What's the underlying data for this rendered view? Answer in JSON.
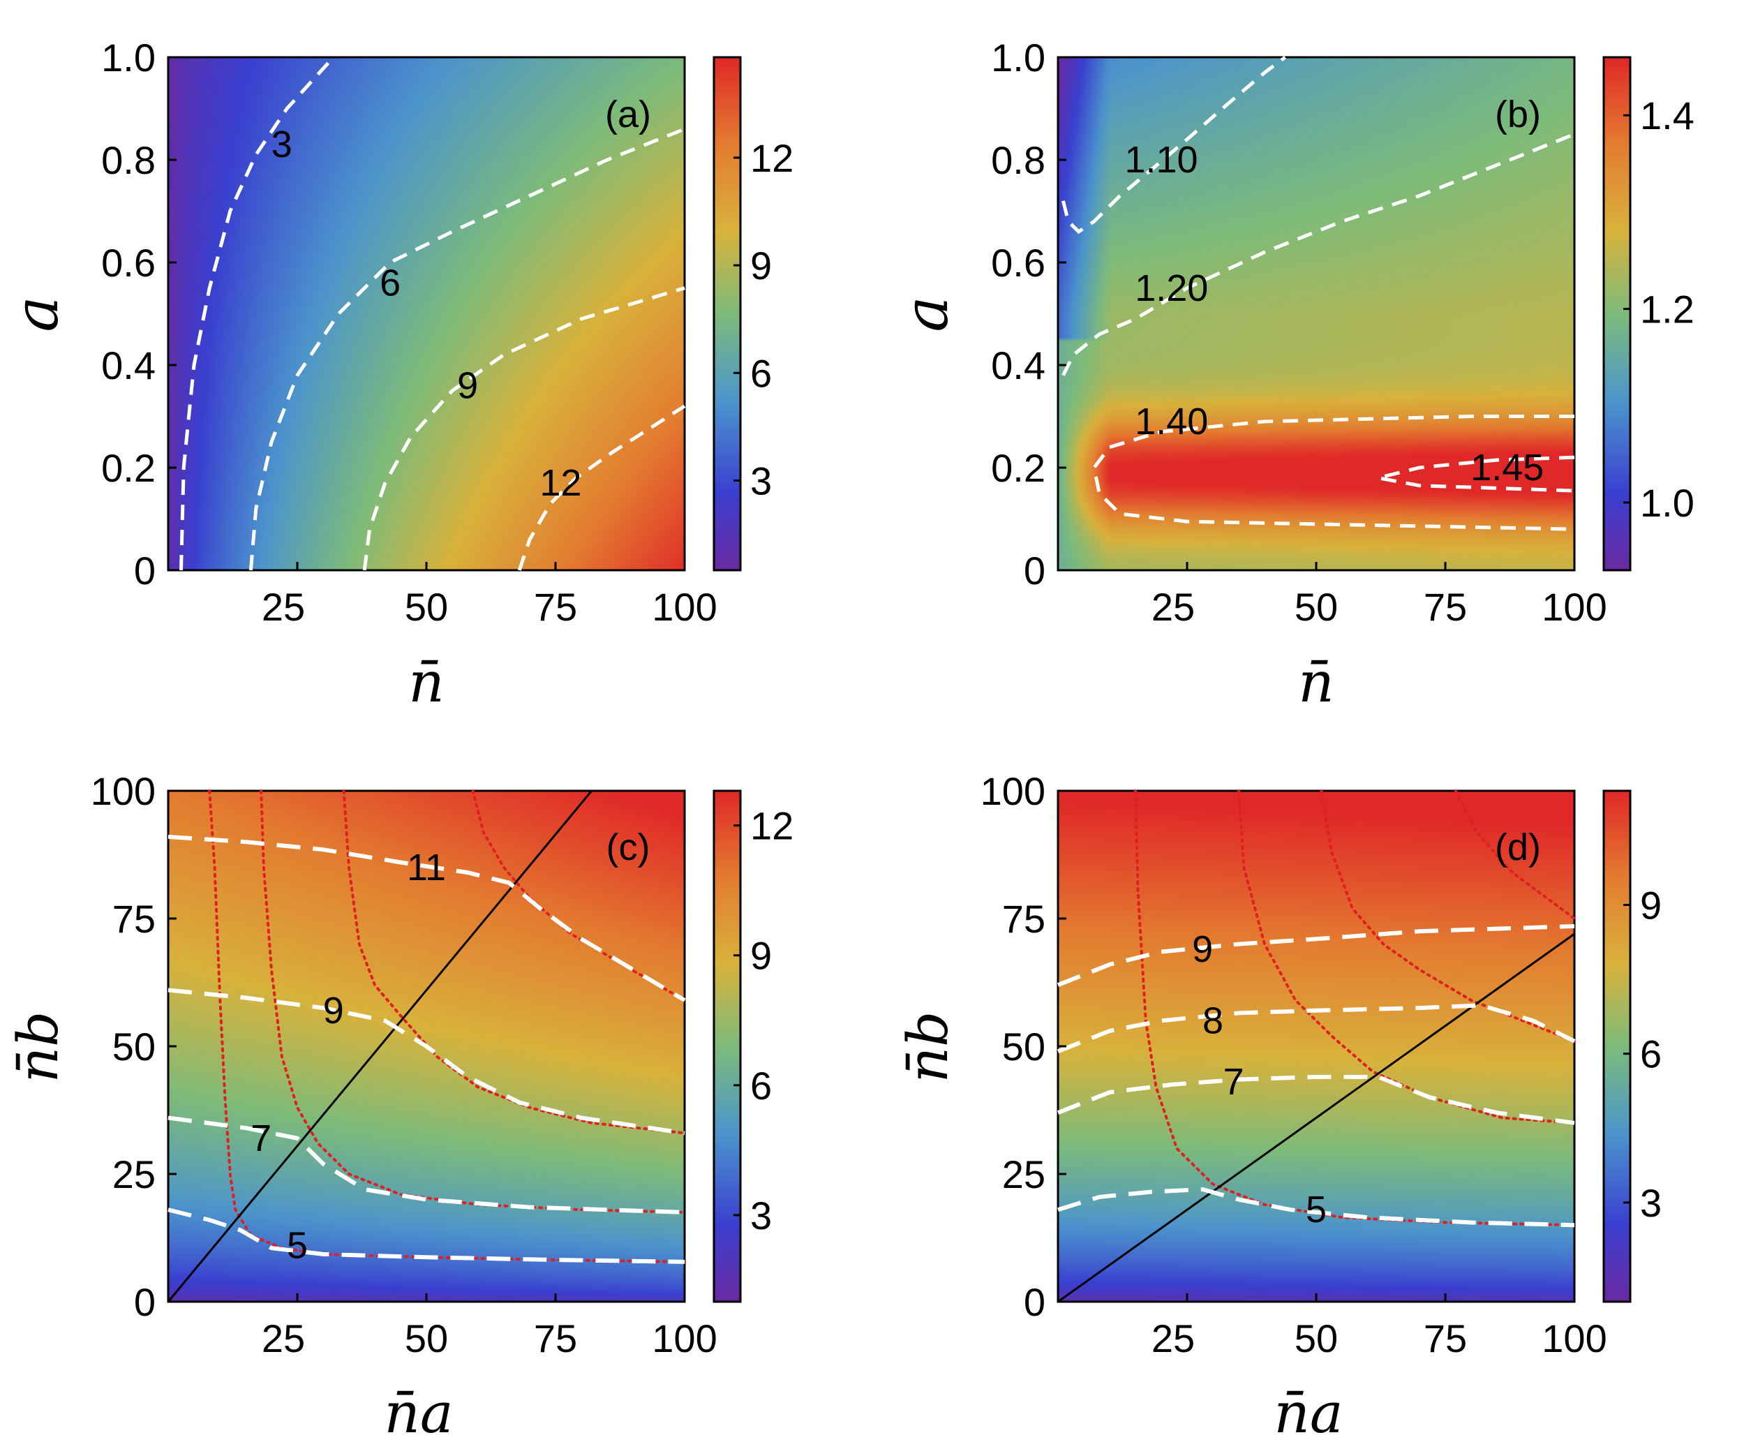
{
  "chart_data": [
    {
      "type": "heatmap",
      "panel_label": "(a)",
      "xlabel": "n̄",
      "ylabel": "a",
      "xlim": [
        0,
        100
      ],
      "ylim": [
        0,
        1
      ],
      "x_ticks": [
        "25",
        "50",
        "75",
        "100"
      ],
      "x_tick_values": [
        25,
        50,
        75,
        100
      ],
      "y_ticks": [
        "0",
        "0.2",
        "0.4",
        "0.6",
        "0.8",
        "1.0"
      ],
      "y_tick_values": [
        0,
        0.2,
        0.4,
        0.6,
        0.8,
        1.0
      ],
      "colorbar": {
        "min": 0.5,
        "max": 14.8,
        "ticks": [
          "3",
          "6",
          "9",
          "12"
        ],
        "tick_values": [
          3,
          6,
          9,
          12
        ]
      },
      "contours": [
        {
          "label": "3",
          "points": [
            [
              2.5,
              0
            ],
            [
              3,
              0.2
            ],
            [
              5,
              0.4
            ],
            [
              8,
              0.55
            ],
            [
              12,
              0.7
            ],
            [
              17,
              0.81
            ],
            [
              23,
              0.9
            ],
            [
              32,
              1.0
            ]
          ],
          "label_at": [
            22,
            0.83
          ]
        },
        {
          "label": "6",
          "points": [
            [
              16,
              0
            ],
            [
              17,
              0.12
            ],
            [
              20,
              0.25
            ],
            [
              25,
              0.38
            ],
            [
              33,
              0.5
            ],
            [
              43,
              0.6
            ],
            [
              55,
              0.66
            ],
            [
              70,
              0.73
            ],
            [
              85,
              0.8
            ],
            [
              100,
              0.86
            ]
          ],
          "label_at": [
            43,
            0.56
          ]
        },
        {
          "label": "9",
          "points": [
            [
              38,
              0
            ],
            [
              39,
              0.08
            ],
            [
              42,
              0.17
            ],
            [
              47,
              0.26
            ],
            [
              55,
              0.35
            ],
            [
              65,
              0.42
            ],
            [
              80,
              0.49
            ],
            [
              100,
              0.55
            ]
          ],
          "label_at": [
            58,
            0.36
          ]
        },
        {
          "label": "12",
          "points": [
            [
              68,
              0
            ],
            [
              70,
              0.06
            ],
            [
              74,
              0.13
            ],
            [
              79,
              0.18
            ],
            [
              86,
              0.23
            ],
            [
              100,
              0.32
            ]
          ],
          "label_at": [
            76,
            0.17
          ]
        }
      ]
    },
    {
      "type": "heatmap",
      "panel_label": "(b)",
      "xlabel": "n̄",
      "ylabel": "a",
      "xlim": [
        0,
        100
      ],
      "ylim": [
        0,
        1
      ],
      "x_ticks": [
        "25",
        "50",
        "75",
        "100"
      ],
      "x_tick_values": [
        25,
        50,
        75,
        100
      ],
      "y_ticks": [
        "0",
        "0.2",
        "0.4",
        "0.6",
        "0.8",
        "1.0"
      ],
      "y_tick_values": [
        0,
        0.2,
        0.4,
        0.6,
        0.8,
        1.0
      ],
      "colorbar": {
        "min": 0.93,
        "max": 1.46,
        "ticks": [
          "1.0",
          "1.2",
          "1.4"
        ],
        "tick_values": [
          1.0,
          1.2,
          1.4
        ]
      },
      "contours": [
        {
          "label": "1.10",
          "points": [
            [
              1,
              0.72
            ],
            [
              2,
              0.68
            ],
            [
              4,
              0.66
            ],
            [
              7,
              0.68
            ],
            [
              12,
              0.73
            ],
            [
              18,
              0.78
            ],
            [
              25,
              0.84
            ],
            [
              33,
              0.91
            ],
            [
              40,
              0.97
            ],
            [
              44,
              1.0
            ]
          ],
          "label_at": [
            20,
            0.8
          ]
        },
        {
          "label": "1.20",
          "points": [
            [
              1,
              0.38
            ],
            [
              3,
              0.42
            ],
            [
              8,
              0.46
            ],
            [
              15,
              0.49
            ],
            [
              25,
              0.55
            ],
            [
              40,
              0.62
            ],
            [
              55,
              0.68
            ],
            [
              70,
              0.73
            ],
            [
              85,
              0.79
            ],
            [
              100,
              0.85
            ]
          ],
          "label_at": [
            22,
            0.55
          ]
        },
        {
          "label": "1.40",
          "points": [
            [
              100,
              0.3
            ],
            [
              80,
              0.3
            ],
            [
              60,
              0.295
            ],
            [
              40,
              0.29
            ],
            [
              20,
              0.27
            ],
            [
              10,
              0.24
            ],
            [
              7,
              0.2
            ],
            [
              8,
              0.15
            ],
            [
              12,
              0.11
            ],
            [
              25,
              0.095
            ],
            [
              50,
              0.09
            ],
            [
              75,
              0.085
            ],
            [
              100,
              0.08
            ]
          ],
          "label_at": [
            22,
            0.29
          ]
        },
        {
          "label": "1.45",
          "points": [
            [
              100,
              0.22
            ],
            [
              85,
              0.215
            ],
            [
              70,
              0.2
            ],
            [
              62,
              0.18
            ],
            [
              70,
              0.165
            ],
            [
              85,
              0.16
            ],
            [
              100,
              0.155
            ]
          ],
          "label_at": [
            87,
            0.2
          ]
        }
      ]
    },
    {
      "type": "heatmap",
      "panel_label": "(c)",
      "xlabel": "n̄a",
      "ylabel": "n̄b",
      "xlim": [
        0,
        100
      ],
      "ylim": [
        0,
        100
      ],
      "x_ticks": [
        "25",
        "50",
        "75",
        "100"
      ],
      "x_tick_values": [
        25,
        50,
        75,
        100
      ],
      "y_ticks": [
        "0",
        "25",
        "50",
        "75",
        "100"
      ],
      "y_tick_values": [
        0,
        25,
        50,
        75,
        100
      ],
      "colorbar": {
        "min": 1,
        "max": 12.8,
        "ticks": [
          "3",
          "6",
          "9",
          "12"
        ],
        "tick_values": [
          3,
          6,
          9,
          12
        ]
      },
      "contours": [
        {
          "label": "11",
          "points": [
            [
              0,
              91
            ],
            [
              15,
              90
            ],
            [
              30,
              88.5
            ],
            [
              45,
              86
            ],
            [
              58,
              84
            ],
            [
              66,
              82
            ],
            [
              72,
              77
            ],
            [
              80,
              71
            ],
            [
              90,
              65
            ],
            [
              100,
              59
            ]
          ],
          "label_at": [
            50,
            85
          ]
        },
        {
          "label": "9",
          "points": [
            [
              0,
              61
            ],
            [
              15,
              59.5
            ],
            [
              30,
              57.5
            ],
            [
              42,
              55
            ],
            [
              50,
              50
            ],
            [
              58,
              44
            ],
            [
              68,
              39
            ],
            [
              80,
              36
            ],
            [
              100,
              33
            ]
          ],
          "label_at": [
            32,
            57
          ]
        },
        {
          "label": "7",
          "points": [
            [
              0,
              36
            ],
            [
              15,
              34
            ],
            [
              25,
              32
            ],
            [
              30,
              27
            ],
            [
              38,
              22
            ],
            [
              50,
              20
            ],
            [
              70,
              18.5
            ],
            [
              100,
              17.5
            ]
          ],
          "label_at": [
            18,
            32
          ]
        },
        {
          "label": "5",
          "points": [
            [
              0,
              18
            ],
            [
              8,
              16
            ],
            [
              14,
              14
            ],
            [
              20,
              10.5
            ],
            [
              30,
              9.3
            ],
            [
              50,
              8.7
            ],
            [
              75,
              8.2
            ],
            [
              100,
              7.8
            ]
          ],
          "label_at": [
            25,
            11
          ]
        }
      ],
      "red_curves": [
        [
          [
            8,
            100
          ],
          [
            9,
            85
          ],
          [
            10,
            60
          ],
          [
            11,
            40
          ],
          [
            12,
            25
          ],
          [
            13,
            18
          ],
          [
            16,
            13
          ],
          [
            22,
            10.5
          ],
          [
            30,
            9.3
          ],
          [
            50,
            8.7
          ],
          [
            75,
            8.2
          ],
          [
            100,
            7.8
          ]
        ],
        [
          [
            18,
            100
          ],
          [
            18.5,
            85
          ],
          [
            20,
            65
          ],
          [
            22,
            48
          ],
          [
            25,
            38
          ],
          [
            29,
            31
          ],
          [
            35,
            25
          ],
          [
            45,
            21
          ],
          [
            60,
            19
          ],
          [
            80,
            18
          ],
          [
            100,
            17.5
          ]
        ],
        [
          [
            34,
            100
          ],
          [
            35,
            85
          ],
          [
            37,
            70
          ],
          [
            40,
            62
          ],
          [
            45,
            56
          ],
          [
            52,
            48
          ],
          [
            60,
            42
          ],
          [
            70,
            38
          ],
          [
            82,
            35
          ],
          [
            100,
            33
          ]
        ],
        [
          [
            59,
            100
          ],
          [
            61,
            92
          ],
          [
            65,
            85
          ],
          [
            70,
            79
          ],
          [
            78,
            72
          ],
          [
            88,
            66
          ],
          [
            100,
            59
          ]
        ]
      ],
      "diagonal": [
        [
          0,
          0
        ],
        [
          82,
          100
        ]
      ]
    },
    {
      "type": "heatmap",
      "panel_label": "(d)",
      "xlabel": "n̄a",
      "ylabel": "n̄b",
      "xlim": [
        0,
        100
      ],
      "ylim": [
        0,
        100
      ],
      "x_ticks": [
        "25",
        "50",
        "75",
        "100"
      ],
      "x_tick_values": [
        25,
        50,
        75,
        100
      ],
      "y_ticks": [
        "0",
        "25",
        "50",
        "75",
        "100"
      ],
      "y_tick_values": [
        0,
        25,
        50,
        75,
        100
      ],
      "colorbar": {
        "min": 1,
        "max": 11.3,
        "ticks": [
          "3",
          "6",
          "9"
        ],
        "tick_values": [
          3,
          6,
          9
        ]
      },
      "contours": [
        {
          "label": "9",
          "points": [
            [
              0,
              62
            ],
            [
              10,
              66
            ],
            [
              20,
              68.5
            ],
            [
              35,
              70
            ],
            [
              50,
              71
            ],
            [
              70,
              72.5
            ],
            [
              85,
              73
            ],
            [
              100,
              73.5
            ]
          ],
          "label_at": [
            28,
            69
          ]
        },
        {
          "label": "8",
          "points": [
            [
              0,
              49
            ],
            [
              10,
              53
            ],
            [
              20,
              55
            ],
            [
              35,
              56.5
            ],
            [
              50,
              57
            ],
            [
              70,
              57.5
            ],
            [
              82,
              58
            ],
            [
              92,
              55
            ],
            [
              100,
              51
            ]
          ],
          "label_at": [
            30,
            55
          ]
        },
        {
          "label": "7",
          "points": [
            [
              0,
              37
            ],
            [
              10,
              41
            ],
            [
              22,
              42.5
            ],
            [
              35,
              43.5
            ],
            [
              50,
              44
            ],
            [
              62,
              44
            ],
            [
              72,
              40
            ],
            [
              85,
              37
            ],
            [
              100,
              35
            ]
          ],
          "label_at": [
            34,
            43
          ]
        },
        {
          "label": "5",
          "points": [
            [
              0,
              18
            ],
            [
              8,
              20.5
            ],
            [
              18,
              21.5
            ],
            [
              28,
              22
            ],
            [
              35,
              20
            ],
            [
              45,
              18
            ],
            [
              60,
              16.5
            ],
            [
              80,
              15.5
            ],
            [
              100,
              15
            ]
          ],
          "label_at": [
            50,
            18
          ]
        }
      ],
      "red_curves": [
        [
          [
            15,
            100
          ],
          [
            15.5,
            80
          ],
          [
            17,
            55
          ],
          [
            19,
            42
          ],
          [
            23,
            30
          ],
          [
            30,
            23
          ],
          [
            40,
            19
          ],
          [
            55,
            16.5
          ],
          [
            75,
            15.5
          ],
          [
            100,
            15
          ]
        ],
        [
          [
            35,
            100
          ],
          [
            36,
            85
          ],
          [
            40,
            70
          ],
          [
            46,
            59
          ],
          [
            53,
            52
          ],
          [
            61,
            45
          ],
          [
            72,
            40
          ],
          [
            86,
            36
          ],
          [
            100,
            35
          ]
        ],
        [
          [
            51,
            100
          ],
          [
            53,
            88
          ],
          [
            57,
            77
          ],
          [
            63,
            70
          ],
          [
            70,
            65
          ],
          [
            80,
            59
          ],
          [
            90,
            55
          ],
          [
            100,
            51
          ]
        ],
        [
          [
            77,
            100
          ],
          [
            81,
            92
          ],
          [
            88,
            84
          ],
          [
            100,
            75
          ]
        ]
      ],
      "diagonal": [
        [
          0,
          0
        ],
        [
          100,
          72
        ]
      ]
    }
  ]
}
